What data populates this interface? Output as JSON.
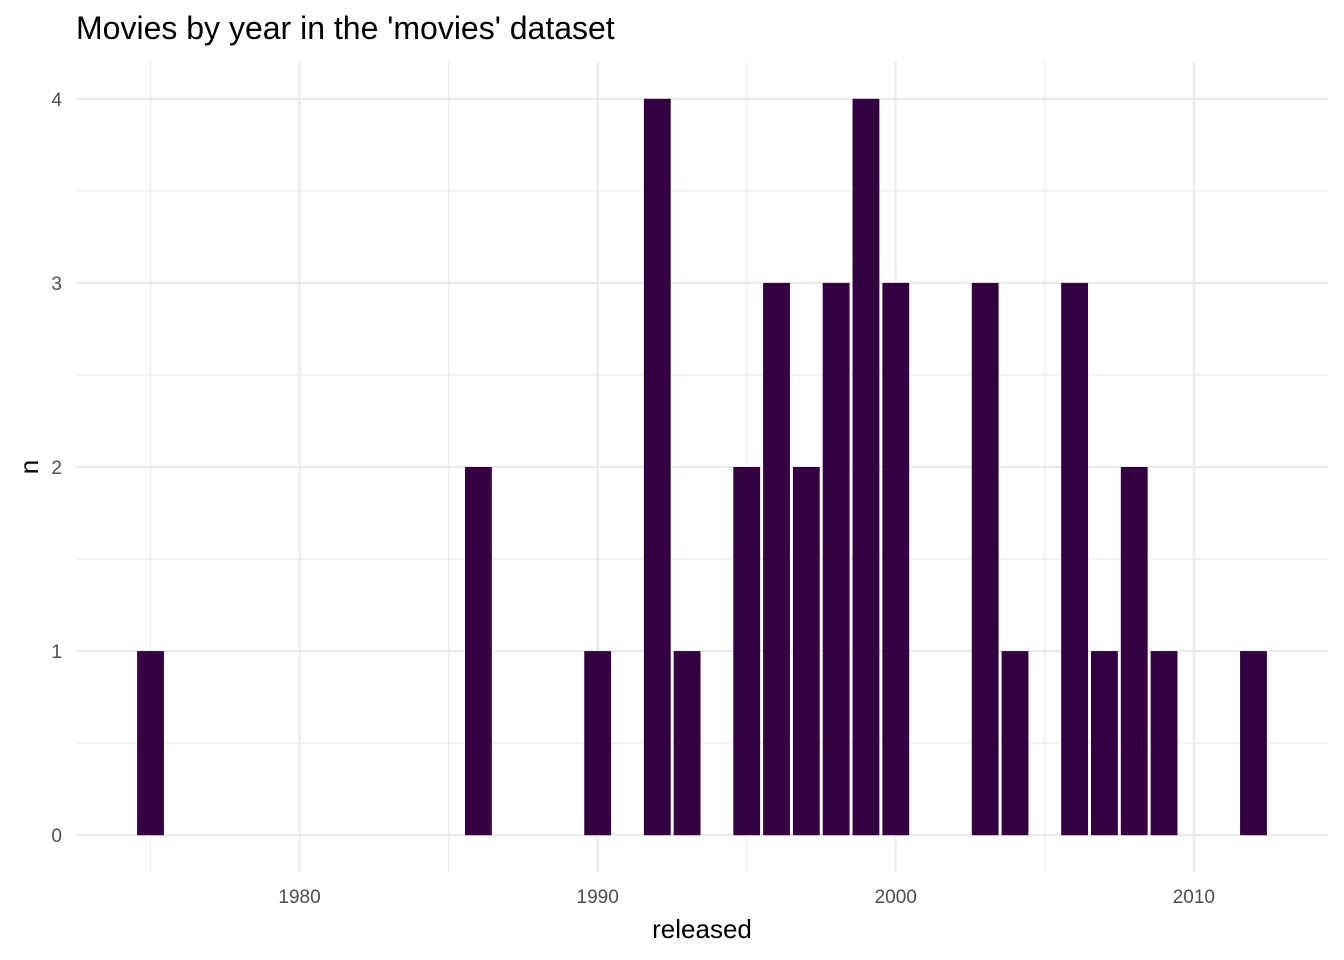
{
  "chart_data": {
    "type": "bar",
    "title": "Movies by year in the 'movies' dataset",
    "xlabel": "released",
    "ylabel": "n",
    "x": [
      1975,
      1986,
      1990,
      1992,
      1993,
      1995,
      1996,
      1997,
      1998,
      1999,
      2000,
      2003,
      2004,
      2006,
      2007,
      2008,
      2009,
      2012
    ],
    "values": [
      1,
      2,
      1,
      4,
      1,
      2,
      3,
      2,
      3,
      4,
      3,
      3,
      1,
      3,
      1,
      2,
      1,
      1
    ],
    "xlim": [
      1972.5,
      2014.5
    ],
    "ylim": [
      -0.2,
      4.2
    ],
    "x_ticks": [
      1980,
      1990,
      2000,
      2010
    ],
    "y_ticks": [
      0,
      1,
      2,
      3,
      4
    ],
    "bar_color": "#340042",
    "grid": true,
    "legend": "none"
  }
}
